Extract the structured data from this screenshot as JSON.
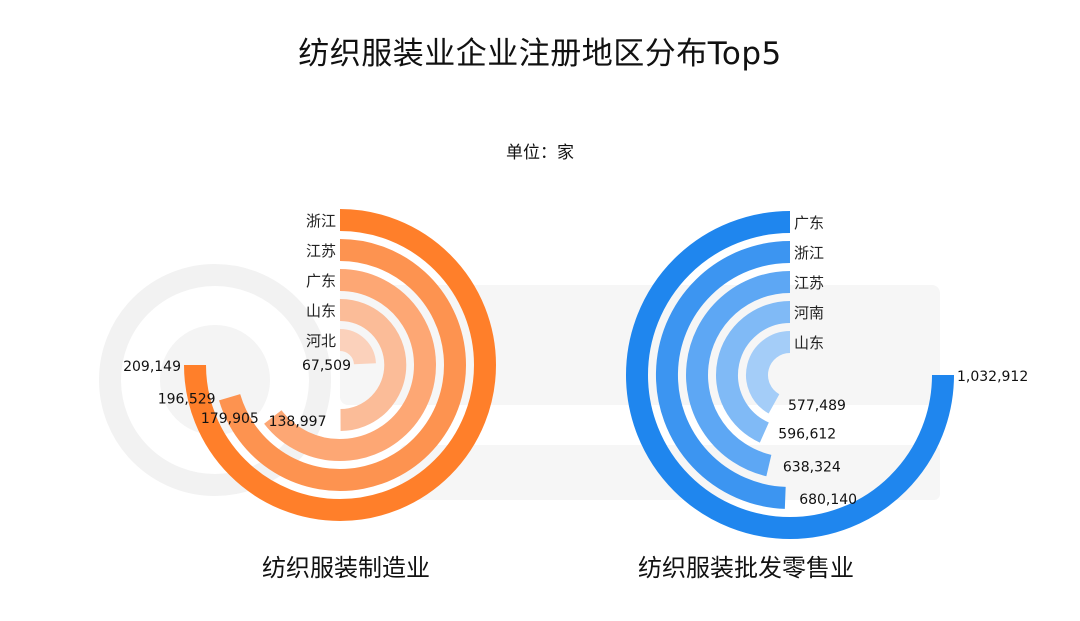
{
  "page": {
    "title": "纺织服装业企业注册地区分布Top5",
    "unit": "单位：家"
  },
  "colors": {
    "manufacturing": [
      "#ff7f2a",
      "#fd9350",
      "#fda774",
      "#fbbc98",
      "#fbd1bb"
    ],
    "retail": [
      "#1f86ee",
      "#3c95f1",
      "#5da7f4",
      "#80baf6",
      "#a4cdf8"
    ]
  },
  "chart_data": [
    {
      "type": "radial-bar",
      "title": "纺织服装制造业",
      "categories": [
        "浙江",
        "江苏",
        "广东",
        "山东",
        "河北"
      ],
      "values": [
        209149,
        196529,
        179905,
        138997,
        67509
      ],
      "value_labels": [
        "209,149",
        "196,529",
        "179,905",
        "138,997",
        "67,509"
      ],
      "max": 209149
    },
    {
      "type": "radial-bar",
      "title": "纺织服装批发零售业",
      "categories": [
        "广东",
        "浙江",
        "江苏",
        "河南",
        "山东"
      ],
      "values": [
        1032912,
        680140,
        638324,
        596612,
        577489
      ],
      "value_labels": [
        "1,032,912",
        "680,140",
        "638,324",
        "596,612",
        "577,489"
      ],
      "max": 1032912
    }
  ]
}
